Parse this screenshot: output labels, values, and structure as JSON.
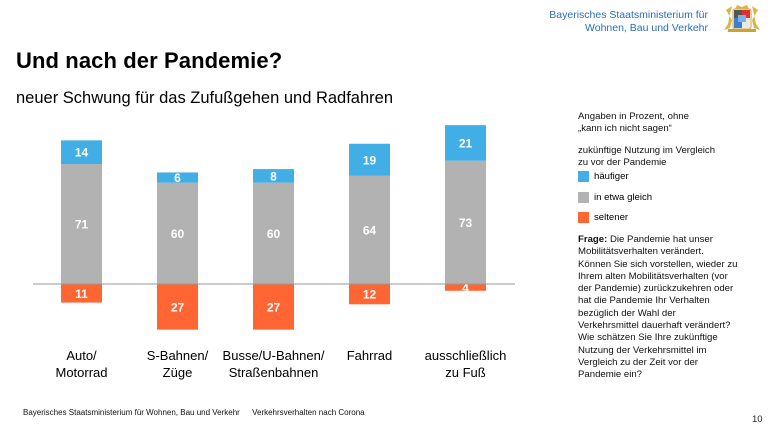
{
  "header": {
    "ministry_line1": "Bayerisches Staatsministerium für",
    "ministry_line2": "Wohnen, Bau und Verkehr",
    "logo": "bavarian-coat-of-arms"
  },
  "title": "Und nach der Pandemie?",
  "subtitle": "neuer Schwung für das Zufußgehen und Radfahren",
  "notes": {
    "line1": "Angaben in Prozent, ohne",
    "line2": "„kann ich nicht sagen“",
    "legend_title_line1": "zukünftige Nutzung im Vergleich",
    "legend_title_line2": "zu vor der Pandemie"
  },
  "question": {
    "label": "Frage:",
    "text": " Die Pandemie hat unser Mobilitätsverhalten verändert. Können Sie sich vorstellen, wieder zu Ihrem alten Mobilitätsverhalten (vor der Pandemie) zurückzukehren oder hat die Pandemie Ihr Verhalten bezüglich der Wahl der Verkehrsmittel dauerhaft verändert? Wie schätzen Sie Ihre zukünftige Nutzung der Verkehrsmittel im Vergleich zu der Zeit vor der Pandemie ein?"
  },
  "footer": {
    "org": "Bayerisches Staatsministerium für Wohnen, Bau und Verkehr",
    "topic": "Verkehrsverhalten nach Corona",
    "page": "10"
  },
  "chart_data": {
    "type": "bar",
    "stacked": true,
    "diverging": true,
    "title": "",
    "xlabel": "",
    "ylabel": "",
    "unit": "Prozent",
    "categories": [
      "Auto/ Motorrad",
      "S-Bahnen/ Züge",
      "Busse/U-Bahnen/ Straßenbahnen",
      "Fahrrad",
      "ausschließlich zu Fuß"
    ],
    "category_lines": [
      [
        "Auto/",
        "Motorrad"
      ],
      [
        "S-Bahnen/",
        "Züge"
      ],
      [
        "Busse/U-Bahnen/",
        "Straßenbahnen"
      ],
      [
        "Fahrrad",
        ""
      ],
      [
        "ausschließlich",
        "zu Fuß"
      ]
    ],
    "series": [
      {
        "name": "häufiger",
        "color": "#41afe6",
        "direction": "up",
        "values": [
          14,
          6,
          8,
          19,
          21
        ]
      },
      {
        "name": "in etwa gleich",
        "color": "#b2b2b2",
        "direction": "up",
        "values": [
          71,
          60,
          60,
          64,
          73
        ]
      },
      {
        "name": "seltener",
        "color": "#ff6633",
        "direction": "down",
        "values": [
          11,
          27,
          27,
          12,
          4
        ]
      }
    ],
    "grid": false,
    "legend_position": "right"
  }
}
